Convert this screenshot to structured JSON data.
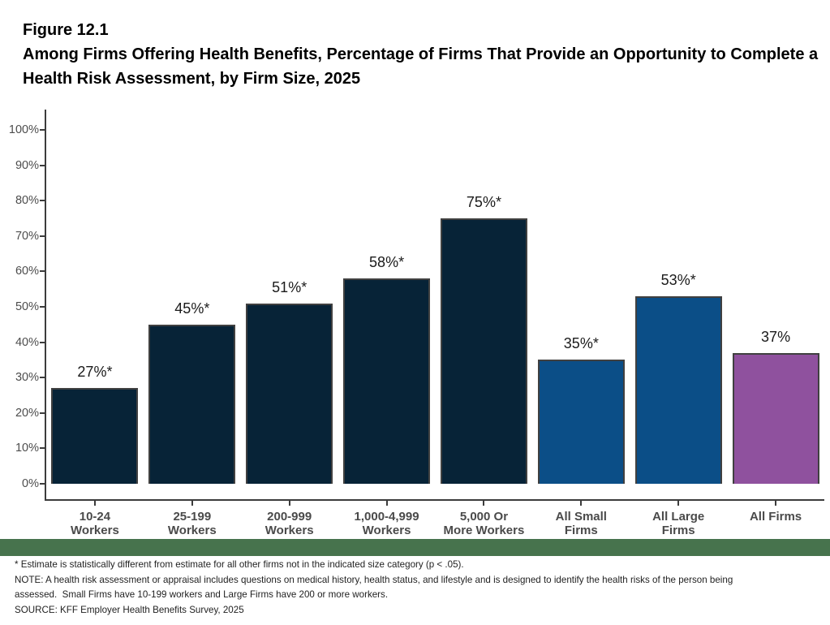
{
  "figure": {
    "label": "Figure 12.1",
    "title": "Among Firms Offering Health Benefits, Percentage of Firms That Provide an Opportunity to Complete a Health Risk Assessment, by Firm Size, 2025"
  },
  "chart_data": {
    "type": "bar",
    "title": "Among Firms Offering Health Benefits, Percentage of Firms That Provide an Opportunity to Complete a Health Risk Assessment, by Firm Size, 2025",
    "categories": [
      "10-24\nWorkers",
      "25-199\nWorkers",
      "200-999\nWorkers",
      "1,000-4,999\nWorkers",
      "5,000 Or\nMore Workers",
      "All Small\nFirms",
      "All Large\nFirms",
      "All Firms"
    ],
    "values": [
      27,
      45,
      51,
      58,
      75,
      35,
      53,
      37
    ],
    "data_labels": [
      "27%*",
      "45%*",
      "51%*",
      "58%*",
      "75%*",
      "35%*",
      "53%*",
      "37%"
    ],
    "bar_colors": [
      "#072337",
      "#072337",
      "#072337",
      "#072337",
      "#072337",
      "#0B4E87",
      "#0B4E87",
      "#8F519E"
    ],
    "xlabel": "",
    "ylabel": "",
    "ylim": [
      0,
      100
    ],
    "ytick_step": 10,
    "ytick_suffix": "%",
    "grid": false,
    "legend": false
  },
  "footnotes": {
    "asterisk": "* Estimate is statistically different from estimate for all other firms not in the indicated size category (p < .05).",
    "note": "NOTE: A health risk assessment or appraisal includes questions on medical history, health status, and lifestyle and is designed to identify the health risks of the person being assessed.  Small Firms have 10-199 workers and Large Firms have 200 or more workers.",
    "source": "SOURCE: KFF Employer Health Benefits Survey, 2025"
  },
  "colors": {
    "dark_navy": "#072337",
    "blue": "#0B4E87",
    "purple": "#8F519E",
    "bar_border": "#404040",
    "axis": "#3C3C3C",
    "footer_band": "#47734D"
  }
}
